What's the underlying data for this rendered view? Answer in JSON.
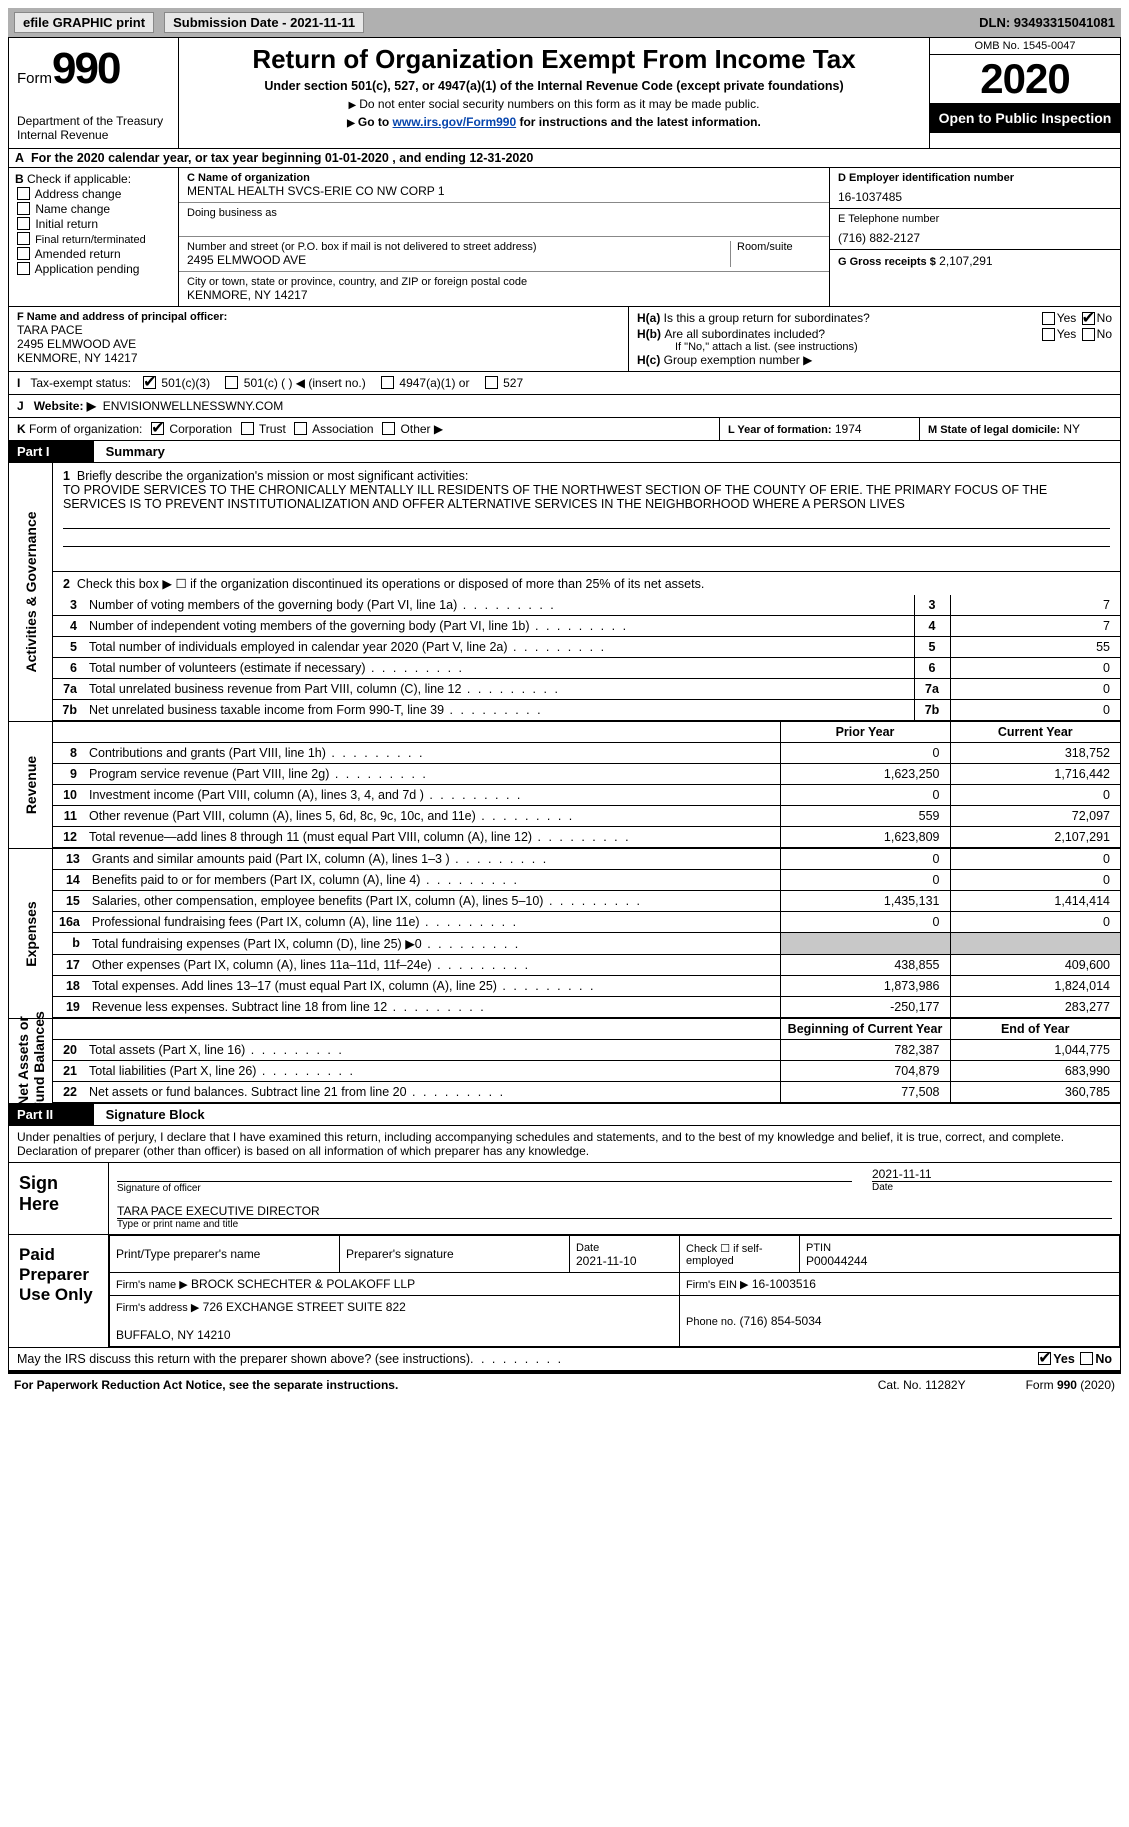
{
  "topbar": {
    "efile": "efile GRAPHIC print",
    "submission": "Submission Date - 2021-11-11",
    "dln": "DLN: 93493315041081"
  },
  "header": {
    "form_label": "Form",
    "form_number": "990",
    "dept": "Department of the Treasury\nInternal Revenue",
    "title": "Return of Organization Exempt From Income Tax",
    "subtitle": "Under section 501(c), 527, or 4947(a)(1) of the Internal Revenue Code (except private foundations)",
    "note1": "Do not enter social security numbers on this form as it may be made public.",
    "note2_pre": "Go to ",
    "note2_link": "www.irs.gov/Form990",
    "note2_post": " for instructions and the latest information.",
    "omb": "OMB No. 1545-0047",
    "year": "2020",
    "open": "Open to Public Inspection"
  },
  "A": {
    "text": "For the 2020 calendar year, or tax year beginning 01-01-2020    , and ending 12-31-2020"
  },
  "B": {
    "label": "Check if applicable:",
    "items": [
      "Address change",
      "Name change",
      "Initial return",
      "Final return/terminated",
      "Amended return",
      "Application pending"
    ]
  },
  "C": {
    "name_lbl": "C Name of organization",
    "name": "MENTAL HEALTH SVCS-ERIE CO NW CORP 1",
    "dba_lbl": "Doing business as",
    "addr_lbl": "Number and street (or P.O. box if mail is not delivered to street address)",
    "room_lbl": "Room/suite",
    "addr": "2495 ELMWOOD AVE",
    "city_lbl": "City or town, state or province, country, and ZIP or foreign postal code",
    "city": "KENMORE, NY  14217"
  },
  "D": {
    "lbl": "D Employer identification number",
    "val": "16-1037485"
  },
  "E": {
    "lbl": "E Telephone number",
    "val": "(716) 882-2127"
  },
  "G": {
    "lbl": "G Gross receipts $",
    "val": "2,107,291"
  },
  "F": {
    "lbl": "F   Name and address of principal officer:",
    "val": "TARA PACE\n2495 ELMWOOD AVE\nKENMORE, NY  14217"
  },
  "H": {
    "a": "Is this a group return for subordinates?",
    "b": "Are all subordinates included?",
    "b_note": "If \"No,\" attach a list. (see instructions)",
    "c": "Group exemption number ▶",
    "yes": "Yes",
    "no": "No"
  },
  "I": {
    "lbl": "Tax-exempt status:",
    "opts": [
      "501(c)(3)",
      "501(c) (  ) ◀ (insert no.)",
      "4947(a)(1) or",
      "527"
    ]
  },
  "J": {
    "lbl": "Website: ▶",
    "val": "ENVISIONWELLNESSWNY.COM"
  },
  "K": {
    "lbl": "Form of organization:",
    "opts": [
      "Corporation",
      "Trust",
      "Association",
      "Other ▶"
    ]
  },
  "L": {
    "lbl": "L Year of formation:",
    "val": "1974"
  },
  "M": {
    "lbl": "M State of legal domicile:",
    "val": "NY"
  },
  "parts": {
    "p1": "Part I",
    "p1_title": "Summary",
    "p2": "Part II",
    "p2_title": "Signature Block"
  },
  "vtabs": {
    "gov": "Activities & Governance",
    "rev": "Revenue",
    "exp": "Expenses",
    "net": "Net Assets or\nFund Balances"
  },
  "summary": {
    "q1": "Briefly describe the organization's mission or most significant activities:",
    "mission": "TO PROVIDE SERVICES TO THE CHRONICALLY MENTALLY ILL RESIDENTS OF THE NORTHWEST SECTION OF THE COUNTY OF ERIE. THE PRIMARY FOCUS OF THE SERVICES IS TO PREVENT INSTITUTIONALIZATION AND OFFER ALTERNATIVE SERVICES IN THE NEIGHBORHOOD WHERE A PERSON LIVES",
    "q2": "Check this box ▶ ☐  if the organization discontinued its operations or disposed of more than 25% of its net assets.",
    "rows_single": [
      {
        "n": "3",
        "d": "Number of voting members of the governing body (Part VI, line 1a)",
        "v": "7"
      },
      {
        "n": "4",
        "d": "Number of independent voting members of the governing body (Part VI, line 1b)",
        "v": "7"
      },
      {
        "n": "5",
        "d": "Total number of individuals employed in calendar year 2020 (Part V, line 2a)",
        "v": "55"
      },
      {
        "n": "6",
        "d": "Total number of volunteers (estimate if necessary)",
        "v": "0"
      },
      {
        "n": "7a",
        "d": "Total unrelated business revenue from Part VIII, column (C), line 12",
        "v": "0"
      },
      {
        "n": "7b",
        "d": "Net unrelated business taxable income from Form 990-T, line 39",
        "v": "0"
      }
    ],
    "col_hdr": {
      "prior": "Prior Year",
      "curr": "Current Year",
      "bcy": "Beginning of Current Year",
      "eoy": "End of Year"
    },
    "rows_rev": [
      {
        "n": "8",
        "d": "Contributions and grants (Part VIII, line 1h)",
        "p": "0",
        "c": "318,752"
      },
      {
        "n": "9",
        "d": "Program service revenue (Part VIII, line 2g)",
        "p": "1,623,250",
        "c": "1,716,442"
      },
      {
        "n": "10",
        "d": "Investment income (Part VIII, column (A), lines 3, 4, and 7d )",
        "p": "0",
        "c": "0"
      },
      {
        "n": "11",
        "d": "Other revenue (Part VIII, column (A), lines 5, 6d, 8c, 9c, 10c, and 11e)",
        "p": "559",
        "c": "72,097"
      },
      {
        "n": "12",
        "d": "Total revenue—add lines 8 through 11 (must equal Part VIII, column (A), line 12)",
        "p": "1,623,809",
        "c": "2,107,291"
      }
    ],
    "rows_exp": [
      {
        "n": "13",
        "d": "Grants and similar amounts paid (Part IX, column (A), lines 1–3 )",
        "p": "0",
        "c": "0"
      },
      {
        "n": "14",
        "d": "Benefits paid to or for members (Part IX, column (A), line 4)",
        "p": "0",
        "c": "0"
      },
      {
        "n": "15",
        "d": "Salaries, other compensation, employee benefits (Part IX, column (A), lines 5–10)",
        "p": "1,435,131",
        "c": "1,414,414"
      },
      {
        "n": "16a",
        "d": "Professional fundraising fees (Part IX, column (A), line 11e)",
        "p": "0",
        "c": "0"
      },
      {
        "n": "b",
        "d": "Total fundraising expenses (Part IX, column (D), line 25) ▶0",
        "p": "",
        "c": "",
        "shade": true
      },
      {
        "n": "17",
        "d": "Other expenses (Part IX, column (A), lines 11a–11d, 11f–24e)",
        "p": "438,855",
        "c": "409,600"
      },
      {
        "n": "18",
        "d": "Total expenses. Add lines 13–17 (must equal Part IX, column (A), line 25)",
        "p": "1,873,986",
        "c": "1,824,014"
      },
      {
        "n": "19",
        "d": "Revenue less expenses. Subtract line 18 from line 12",
        "p": "-250,177",
        "c": "283,277"
      }
    ],
    "rows_net": [
      {
        "n": "20",
        "d": "Total assets (Part X, line 16)",
        "p": "782,387",
        "c": "1,044,775"
      },
      {
        "n": "21",
        "d": "Total liabilities (Part X, line 26)",
        "p": "704,879",
        "c": "683,990"
      },
      {
        "n": "22",
        "d": "Net assets or fund balances. Subtract line 21 from line 20",
        "p": "77,508",
        "c": "360,785"
      }
    ]
  },
  "sig": {
    "decl": "Under penalties of perjury, I declare that I have examined this return, including accompanying schedules and statements, and to the best of my knowledge and belief, it is true, correct, and complete. Declaration of preparer (other than officer) is based on all information of which preparer has any knowledge.",
    "sign_here": "Sign Here",
    "sig_officer": "Signature of officer",
    "date": "Date",
    "date_val": "2021-11-11",
    "name_title": "TARA PACE  EXECUTIVE DIRECTOR",
    "name_lbl": "Type or print name and title",
    "paid": "Paid Preparer Use Only",
    "prep_name_lbl": "Print/Type preparer's name",
    "prep_sig_lbl": "Preparer's signature",
    "prep_date": "2021-11-10",
    "check_self": "Check ☐ if self-employed",
    "ptin_lbl": "PTIN",
    "ptin": "P00044244",
    "firm_name_lbl": "Firm's name      ▶",
    "firm_name": "BROCK SCHECHTER & POLAKOFF LLP",
    "firm_ein_lbl": "Firm's EIN ▶",
    "firm_ein": "16-1003516",
    "firm_addr_lbl": "Firm's address ▶",
    "firm_addr": "726 EXCHANGE STREET SUITE 822\n\nBUFFALO, NY  14210",
    "phone_lbl": "Phone no.",
    "phone": "(716) 854-5034",
    "may_irs": "May the IRS discuss this return with the preparer shown above? (see instructions)"
  },
  "footer": {
    "pra": "For Paperwork Reduction Act Notice, see the separate instructions.",
    "cat": "Cat. No. 11282Y",
    "form": "Form 990 (2020)"
  }
}
